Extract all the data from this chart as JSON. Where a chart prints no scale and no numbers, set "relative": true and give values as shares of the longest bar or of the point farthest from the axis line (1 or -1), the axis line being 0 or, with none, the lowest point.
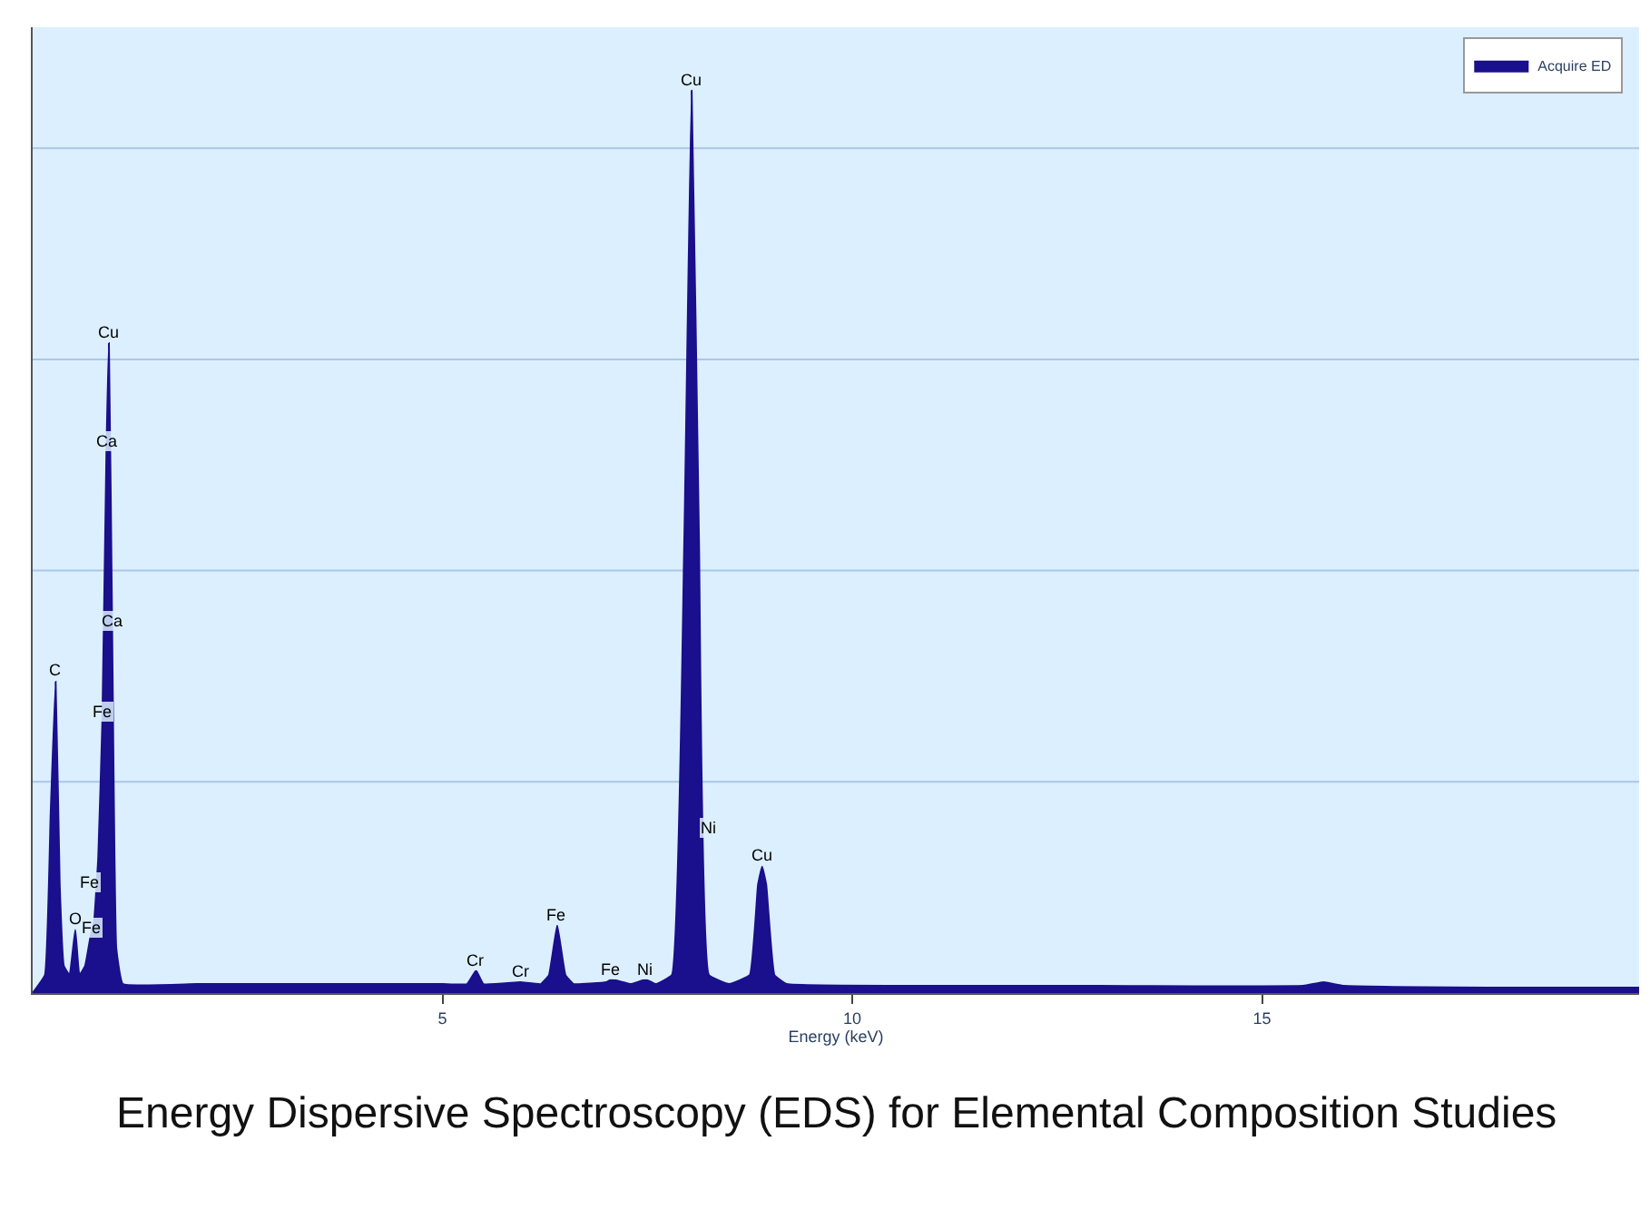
{
  "chart_data": {
    "type": "area",
    "relative": true,
    "xlabel": "Energy (keV)",
    "x": [
      0.0,
      0.15,
      0.22,
      0.28,
      0.33,
      0.38,
      0.45,
      0.52,
      0.57,
      0.64,
      0.7,
      0.75,
      0.8,
      0.85,
      0.9,
      0.93,
      0.97,
      1.02,
      1.1,
      2.0,
      3.0,
      4.0,
      5.0,
      5.3,
      5.41,
      5.5,
      5.95,
      6.2,
      6.3,
      6.4,
      6.5,
      6.6,
      7.0,
      7.06,
      7.3,
      7.48,
      7.6,
      7.8,
      7.95,
      8.04,
      8.13,
      8.25,
      8.5,
      8.75,
      8.85,
      8.9,
      8.95,
      9.05,
      9.2,
      11.0,
      13.0,
      15.5,
      15.75,
      16.0,
      18.0,
      19.6
    ],
    "series": [
      {
        "name": "Acquire ED",
        "color": "#1a0f8c",
        "values": [
          0.0,
          0.02,
          0.2,
          0.345,
          0.12,
          0.03,
          0.02,
          0.07,
          0.02,
          0.03,
          0.06,
          0.08,
          0.15,
          0.3,
          0.6,
          0.72,
          0.4,
          0.05,
          0.01,
          0.01,
          0.01,
          0.01,
          0.01,
          0.01,
          0.025,
          0.01,
          0.012,
          0.01,
          0.02,
          0.075,
          0.02,
          0.01,
          0.012,
          0.015,
          0.01,
          0.015,
          0.01,
          0.02,
          0.5,
          1.0,
          0.5,
          0.02,
          0.01,
          0.02,
          0.12,
          0.14,
          0.12,
          0.02,
          0.01,
          0.008,
          0.008,
          0.008,
          0.012,
          0.008,
          0.006,
          0.006
        ]
      }
    ],
    "xlim": [
      0,
      19.6
    ],
    "xticks": [
      5,
      10,
      15
    ],
    "ref_lines": [
      {
        "axis": "y",
        "value": 0.234,
        "color": "#a9c7e6"
      },
      {
        "axis": "y",
        "value": 0.468,
        "color": "#a9c7e6"
      },
      {
        "axis": "y",
        "value": 0.702,
        "color": "#a9c7e6"
      },
      {
        "axis": "y",
        "value": 0.936,
        "color": "#a9c7e6"
      }
    ],
    "legend": "top right",
    "annotations": [
      {
        "text": "C",
        "x": 0.28,
        "y": 0.345
      },
      {
        "text": "O",
        "x": 0.52,
        "y": 0.07
      },
      {
        "text": "Fe",
        "x": 0.7,
        "y": 0.11
      },
      {
        "text": "Fe",
        "x": 0.72,
        "y": 0.06
      },
      {
        "text": "Fe",
        "x": 0.85,
        "y": 0.3
      },
      {
        "text": "Ca",
        "x": 0.9,
        "y": 0.6
      },
      {
        "text": "Cu",
        "x": 0.93,
        "y": 0.72
      },
      {
        "text": "Ca",
        "x": 0.97,
        "y": 0.4
      },
      {
        "text": "Cr",
        "x": 5.41,
        "y": 0.025
      },
      {
        "text": "Cr",
        "x": 5.95,
        "y": 0.012
      },
      {
        "text": "Fe",
        "x": 6.4,
        "y": 0.075
      },
      {
        "text": "Fe",
        "x": 7.06,
        "y": 0.015
      },
      {
        "text": "Ni",
        "x": 7.48,
        "y": 0.015
      },
      {
        "text": "Cu",
        "x": 8.04,
        "y": 1.0
      },
      {
        "text": "Ni",
        "x": 8.26,
        "y": 0.17
      },
      {
        "text": "Cu",
        "x": 8.9,
        "y": 0.14
      },
      "Energy Dispersive Spectroscopy (EDS) for Elemental Composition Studies"
    ]
  }
}
